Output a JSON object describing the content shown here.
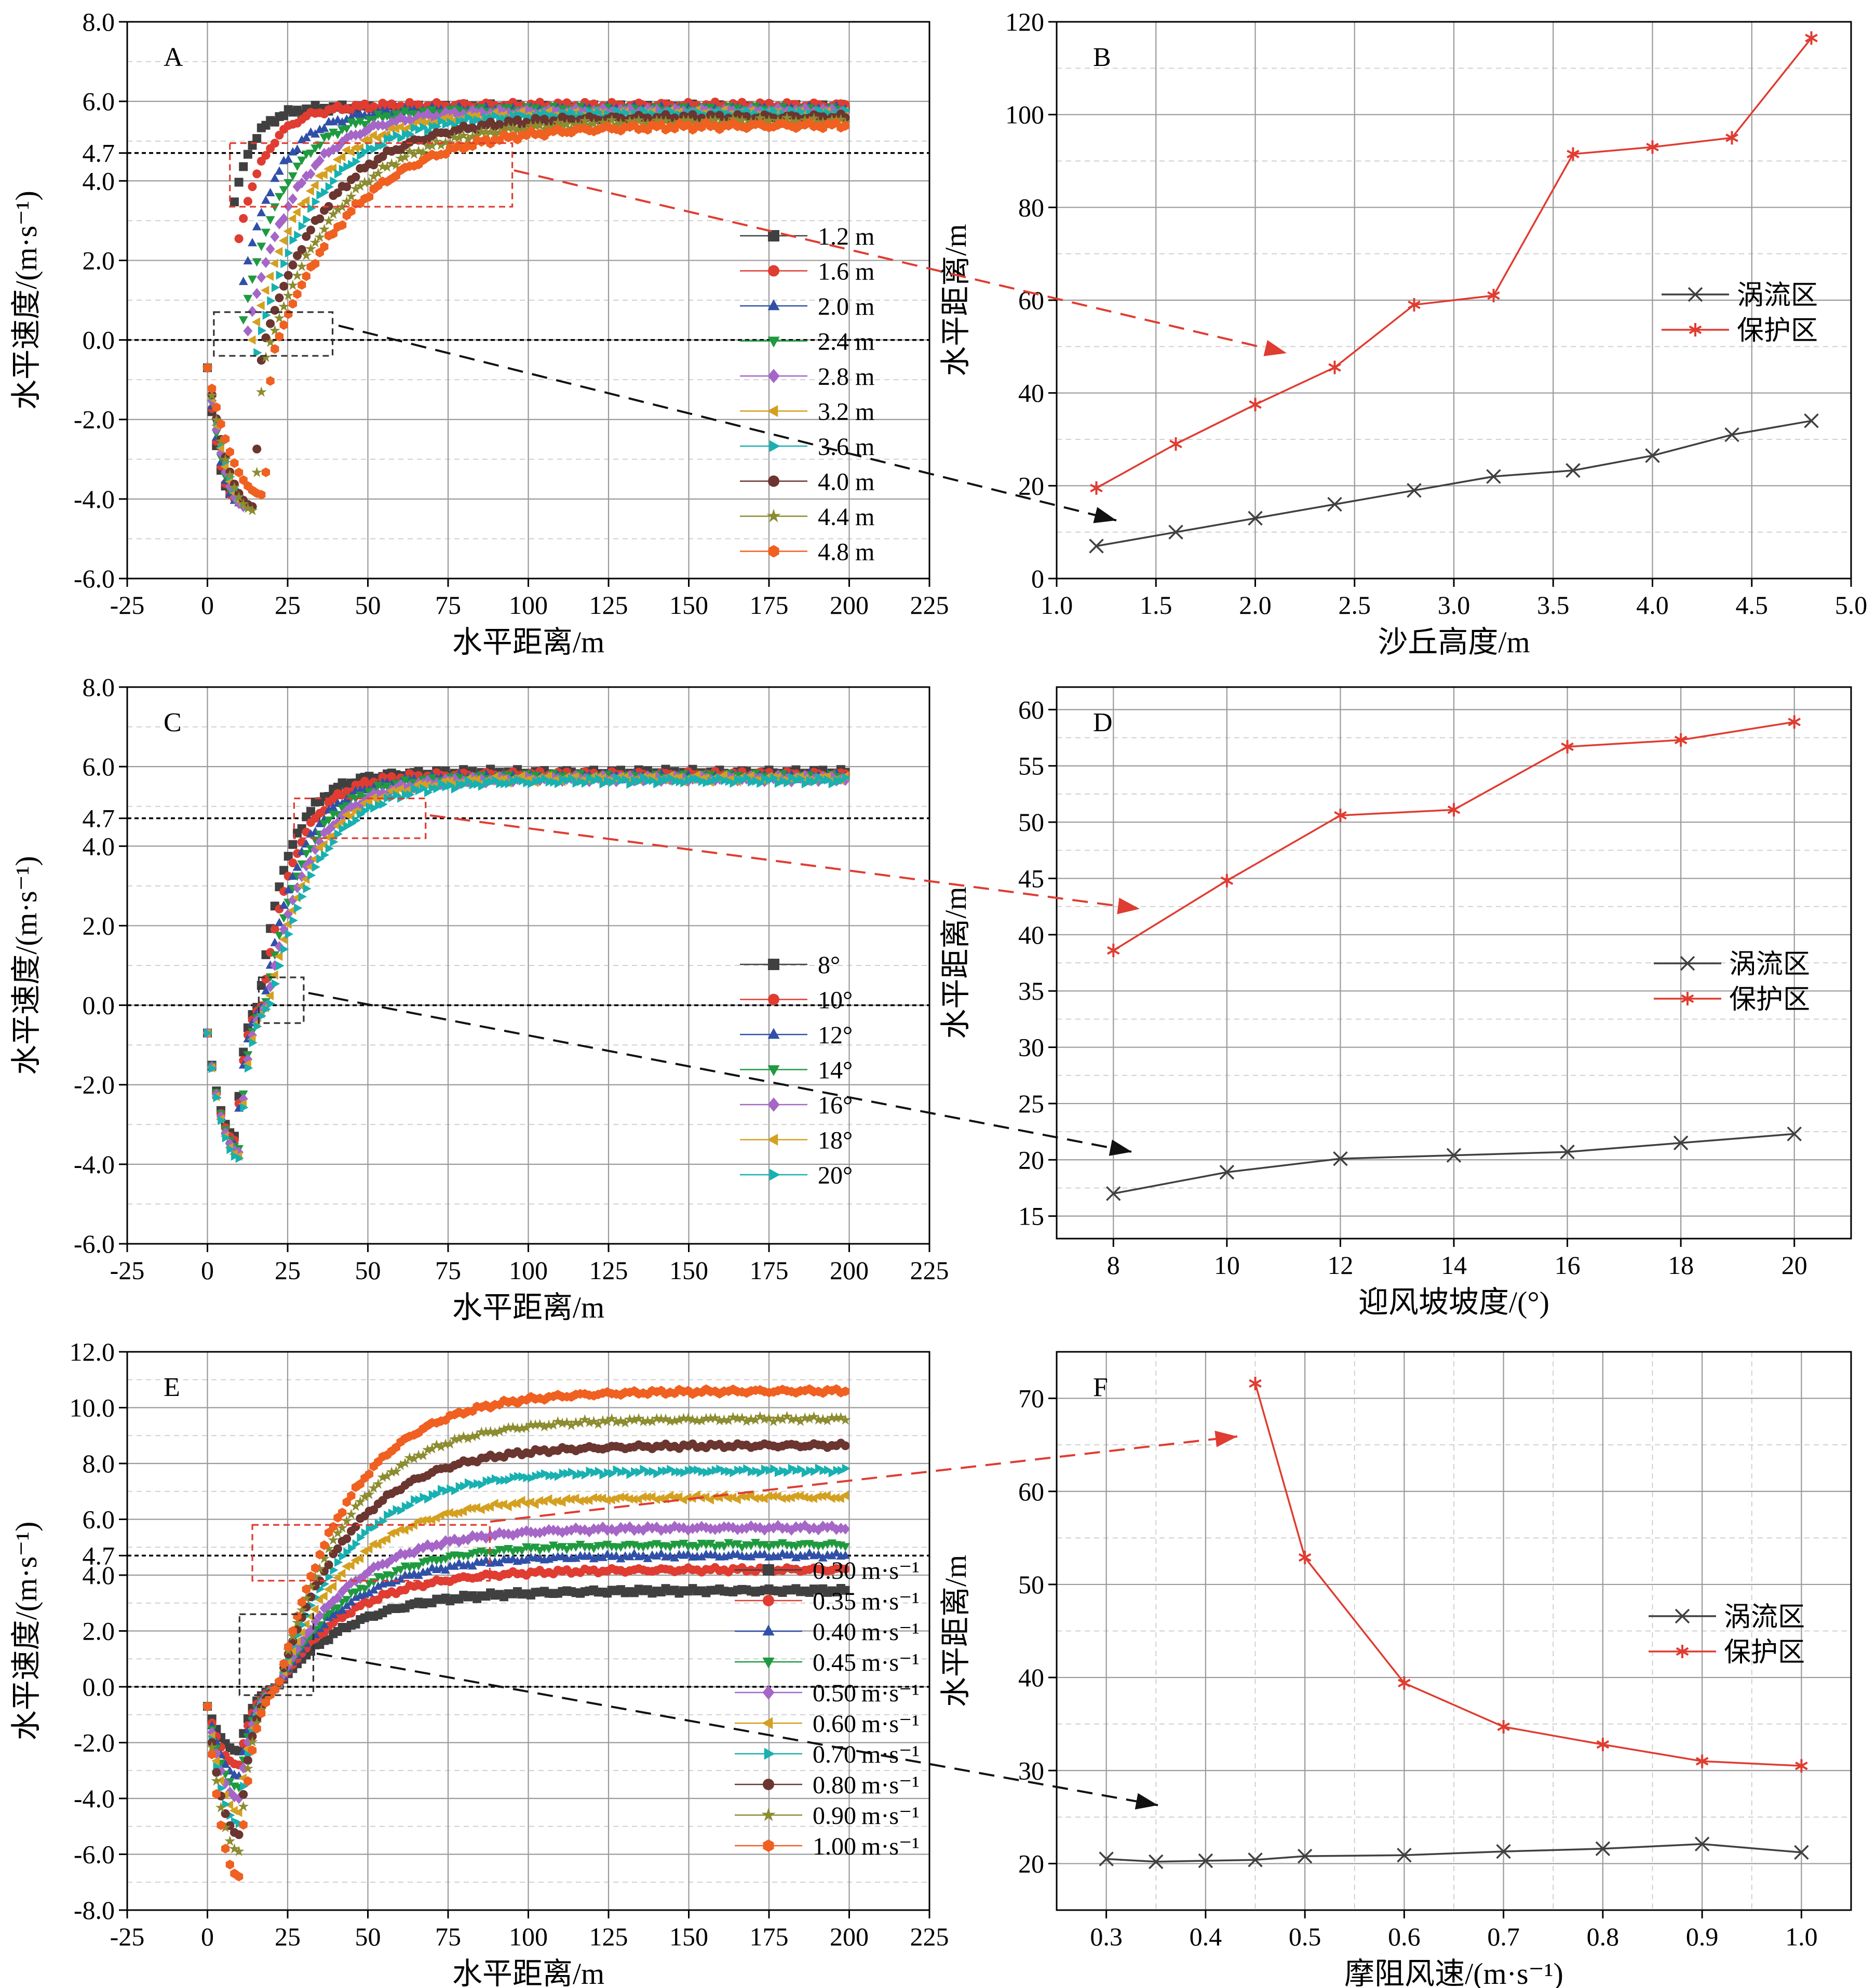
{
  "chart_data": [
    {
      "id": "A",
      "type": "scatter",
      "panel_label": "A",
      "xlabel": "水平距离/m",
      "ylabel": "水平速度/(m·s⁻¹)",
      "xlim": [
        -25,
        225
      ],
      "ylim": [
        -6,
        8
      ],
      "xticks": [
        -25,
        0,
        25,
        50,
        75,
        100,
        125,
        150,
        175,
        200,
        225
      ],
      "yticks": [
        -6,
        -4,
        -2,
        0,
        2,
        4,
        6,
        8
      ],
      "extra_ytick": 4.7,
      "ref_lines": [
        4.7,
        0
      ],
      "legend_location": "center-right",
      "series": [
        {
          "name": "1.2 m",
          "color": "#404040",
          "marker": "square",
          "min": -3.9,
          "x_min": 8,
          "final": 5.85,
          "knee": 6.0,
          "x0": 3
        },
        {
          "name": "1.6 m",
          "color": "#e03c31",
          "marker": "circle",
          "min": -4.0,
          "x_min": 9,
          "final": 5.9,
          "knee": 8.5,
          "x0": 5
        },
        {
          "name": "2.0 m",
          "color": "#3050a8",
          "marker": "triangle-up",
          "min": -4.1,
          "x_min": 10,
          "final": 5.8,
          "knee": 11.0,
          "x0": 8
        },
        {
          "name": "2.4 m",
          "color": "#1f9a3f",
          "marker": "triangle-down",
          "min": -4.15,
          "x_min": 11,
          "final": 5.8,
          "knee": 13.0,
          "x0": 10
        },
        {
          "name": "2.8 m",
          "color": "#a566c7",
          "marker": "diamond",
          "min": -4.2,
          "x_min": 12,
          "final": 5.75,
          "knee": 15.0,
          "x0": 12
        },
        {
          "name": "3.2 m",
          "color": "#d4a020",
          "marker": "triangle-left",
          "min": -4.2,
          "x_min": 13,
          "final": 5.7,
          "knee": 17.0,
          "x0": 14
        },
        {
          "name": "3.6 m",
          "color": "#18b0b0",
          "marker": "triangle-right",
          "min": -4.2,
          "x_min": 14,
          "final": 5.7,
          "knee": 19.0,
          "x0": 16
        },
        {
          "name": "4.0 m",
          "color": "#6b3530",
          "marker": "circle",
          "min": -4.2,
          "x_min": 15,
          "final": 5.6,
          "knee": 21.0,
          "x0": 18
        },
        {
          "name": "4.4 m",
          "color": "#8c8c30",
          "marker": "star",
          "min": -4.3,
          "x_min": 15,
          "final": 5.5,
          "knee": 23.0,
          "x0": 20
        },
        {
          "name": "4.8 m",
          "color": "#f06020",
          "marker": "hexagon",
          "min": -3.9,
          "x_min": 18,
          "final": 5.4,
          "knee": 25.0,
          "x0": 22
        }
      ]
    },
    {
      "id": "B",
      "type": "line",
      "panel_label": "B",
      "xlabel": "沙丘高度/m",
      "ylabel": "水平距离/m",
      "xlim": [
        1.0,
        5.0
      ],
      "ylim": [
        0,
        120
      ],
      "xticks": [
        1.0,
        1.5,
        2.0,
        2.5,
        3.0,
        3.5,
        4.0,
        4.5,
        5.0
      ],
      "xtick_decimals": 1,
      "yticks": [
        0,
        20,
        40,
        60,
        80,
        100,
        120
      ],
      "ytick_decimals": 0,
      "legend_location": "center-right",
      "x": [
        1.2,
        1.6,
        2.0,
        2.4,
        2.8,
        3.2,
        3.6,
        4.0,
        4.4,
        4.8
      ],
      "series": [
        {
          "name": "涡流区",
          "color": "#404040",
          "marker": "x",
          "values": [
            7,
            10,
            13,
            16,
            19,
            22,
            23.3,
            26.5,
            31,
            34
          ]
        },
        {
          "name": "保护区",
          "color": "#e03c31",
          "marker": "asterisk",
          "values": [
            19.5,
            29,
            37.5,
            45.5,
            59,
            61,
            91.5,
            93,
            95,
            116.5
          ]
        }
      ]
    },
    {
      "id": "C",
      "type": "scatter",
      "panel_label": "C",
      "xlabel": "水平距离/m",
      "ylabel": "水平速度/(m·s⁻¹)",
      "xlim": [
        -25,
        225
      ],
      "ylim": [
        -6,
        8
      ],
      "xticks": [
        -25,
        0,
        25,
        50,
        75,
        100,
        125,
        150,
        175,
        200,
        225
      ],
      "yticks": [
        -6,
        -4,
        -2,
        0,
        2,
        4,
        6,
        8
      ],
      "extra_ytick": 4.7,
      "ref_lines": [
        4.7,
        0
      ],
      "legend_location": "center-right",
      "series": [
        {
          "name": "8°",
          "color": "#404040",
          "marker": "square",
          "min": -3.3,
          "x_min": 9,
          "final": 5.85,
          "knee": 9.0,
          "x0": 16
        },
        {
          "name": "10°",
          "color": "#e03c31",
          "marker": "circle",
          "min": -3.4,
          "x_min": 9,
          "final": 5.8,
          "knee": 10.0,
          "x0": 17
        },
        {
          "name": "12°",
          "color": "#3050a8",
          "marker": "triangle-up",
          "min": -3.5,
          "x_min": 9,
          "final": 5.75,
          "knee": 11.0,
          "x0": 17.5
        },
        {
          "name": "14°",
          "color": "#1f9a3f",
          "marker": "triangle-down",
          "min": -3.6,
          "x_min": 10,
          "final": 5.75,
          "knee": 12.0,
          "x0": 18
        },
        {
          "name": "16°",
          "color": "#a566c7",
          "marker": "diamond",
          "min": -3.7,
          "x_min": 10,
          "final": 5.7,
          "knee": 13.0,
          "x0": 18.5
        },
        {
          "name": "18°",
          "color": "#d4a020",
          "marker": "triangle-left",
          "min": -3.8,
          "x_min": 10,
          "final": 5.7,
          "knee": 14.0,
          "x0": 19
        },
        {
          "name": "20°",
          "color": "#18b0b0",
          "marker": "triangle-right",
          "min": -3.85,
          "x_min": 10,
          "final": 5.65,
          "knee": 15.0,
          "x0": 19.5
        }
      ]
    },
    {
      "id": "D",
      "type": "line",
      "panel_label": "D",
      "xlabel": "迎风坡坡度/(°)",
      "ylabel": "水平距离/m",
      "xlim": [
        7,
        21
      ],
      "ylim": [
        13,
        62
      ],
      "xticks": [
        8,
        10,
        12,
        14,
        16,
        18,
        20
      ],
      "xtick_decimals": 0,
      "yticks": [
        15,
        20,
        25,
        30,
        35,
        40,
        45,
        50,
        55,
        60
      ],
      "ytick_decimals": 0,
      "legend_location": "center-right",
      "x": [
        8,
        10,
        12,
        14,
        16,
        18,
        20
      ],
      "series": [
        {
          "name": "涡流区",
          "color": "#404040",
          "marker": "x",
          "values": [
            17,
            18.9,
            20.1,
            20.4,
            20.7,
            21.5,
            22.3
          ]
        },
        {
          "name": "保护区",
          "color": "#e03c31",
          "marker": "asterisk",
          "values": [
            38.6,
            44.8,
            50.6,
            51.1,
            56.7,
            57.3,
            58.9
          ]
        }
      ]
    },
    {
      "id": "E",
      "type": "scatter",
      "panel_label": "E",
      "xlabel": "水平距离/m",
      "ylabel": "水平速度/(m·s⁻¹)",
      "xlim": [
        -25,
        225
      ],
      "ylim": [
        -8,
        12
      ],
      "xticks": [
        -25,
        0,
        25,
        50,
        75,
        100,
        125,
        150,
        175,
        200,
        225
      ],
      "yticks": [
        -8,
        -6,
        -4,
        -2,
        0,
        2,
        4,
        6,
        8,
        10,
        12
      ],
      "extra_ytick": 4.7,
      "ref_lines": [
        4.7,
        0
      ],
      "legend_location": "bottom-right",
      "legend_unit": "m·s⁻¹",
      "series": [
        {
          "name": "0.30",
          "color": "#404040",
          "marker": "square",
          "min": -2.3,
          "x_min": 10,
          "final": 3.45,
          "knee": 22,
          "x0": 22
        },
        {
          "name": "0.35",
          "color": "#e03c31",
          "marker": "circle",
          "min": -2.8,
          "x_min": 10,
          "final": 4.2,
          "knee": 22,
          "x0": 22
        },
        {
          "name": "0.40",
          "color": "#3050a8",
          "marker": "triangle-up",
          "min": -3.2,
          "x_min": 10,
          "final": 4.7,
          "knee": 22,
          "x0": 22
        },
        {
          "name": "0.45",
          "color": "#1f9a3f",
          "marker": "triangle-down",
          "min": -3.6,
          "x_min": 10,
          "final": 5.1,
          "knee": 22,
          "x0": 22
        },
        {
          "name": "0.50",
          "color": "#a566c7",
          "marker": "diamond",
          "min": -4.0,
          "x_min": 10,
          "final": 5.7,
          "knee": 22,
          "x0": 22
        },
        {
          "name": "0.60",
          "color": "#d4a020",
          "marker": "triangle-left",
          "min": -4.5,
          "x_min": 10,
          "final": 6.8,
          "knee": 22,
          "x0": 22
        },
        {
          "name": "0.70",
          "color": "#18b0b0",
          "marker": "triangle-right",
          "min": -4.9,
          "x_min": 10,
          "final": 7.75,
          "knee": 22,
          "x0": 22
        },
        {
          "name": "0.80",
          "color": "#6b3530",
          "marker": "circle",
          "min": -5.3,
          "x_min": 10,
          "final": 8.65,
          "knee": 22,
          "x0": 22
        },
        {
          "name": "0.90",
          "color": "#8c8c30",
          "marker": "star",
          "min": -5.9,
          "x_min": 10,
          "final": 9.6,
          "knee": 22,
          "x0": 22
        },
        {
          "name": "1.00",
          "color": "#f06020",
          "marker": "hexagon",
          "min": -6.8,
          "x_min": 10,
          "final": 10.6,
          "knee": 22,
          "x0": 22
        }
      ]
    },
    {
      "id": "F",
      "type": "line",
      "panel_label": "F",
      "xlabel": "摩阻风速/(m·s⁻¹)",
      "ylabel": "水平距离/m",
      "xlim": [
        0.25,
        1.05
      ],
      "ylim": [
        15,
        75
      ],
      "xticks": [
        0.3,
        0.4,
        0.5,
        0.6,
        0.7,
        0.8,
        0.9,
        1.0
      ],
      "xtick_decimals": 1,
      "yticks": [
        20,
        30,
        40,
        50,
        60,
        70
      ],
      "ytick_decimals": 0,
      "legend_location": "center-right",
      "series": [
        {
          "name": "涡流区",
          "color": "#404040",
          "marker": "x",
          "x": [
            0.3,
            0.35,
            0.4,
            0.45,
            0.5,
            0.6,
            0.7,
            0.8,
            0.9,
            1.0
          ],
          "values": [
            20.5,
            20.2,
            20.3,
            20.4,
            20.8,
            20.9,
            21.3,
            21.6,
            22.1,
            21.2
          ]
        },
        {
          "name": "保护区",
          "color": "#e03c31",
          "marker": "asterisk",
          "x": [
            0.45,
            0.5,
            0.6,
            0.7,
            0.8,
            0.9,
            1.0
          ],
          "values": [
            71.6,
            52.9,
            39.4,
            34.7,
            32.8,
            31.0,
            30.5
          ]
        }
      ]
    }
  ]
}
